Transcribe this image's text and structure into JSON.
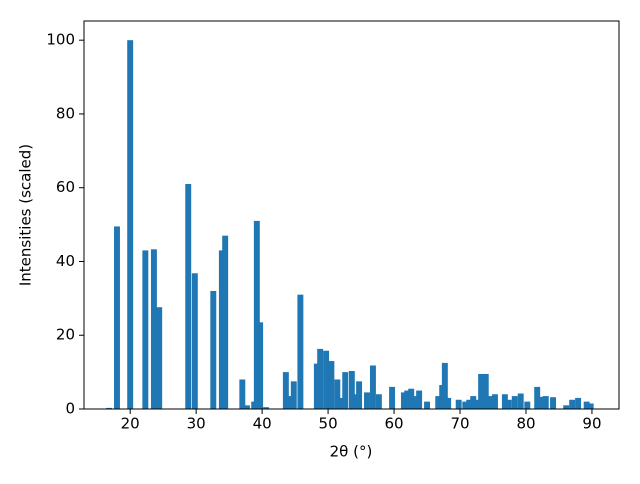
{
  "chart_data": {
    "type": "bar",
    "xlabel": "2θ (°)",
    "ylabel": "Intensities (scaled)",
    "color": "#1f77b4",
    "x": [
      16.8,
      18.0,
      20.0,
      22.3,
      23.6,
      24.4,
      28.8,
      29.8,
      32.6,
      33.9,
      34.4,
      37.0,
      37.7,
      38.8,
      39.2,
      39.7,
      40.6,
      43.6,
      44.2,
      44.8,
      45.8,
      48.3,
      48.8,
      49.7,
      50.5,
      51.4,
      52.0,
      52.6,
      53.6,
      54.2,
      54.7,
      55.9,
      56.8,
      57.7,
      59.7,
      61.5,
      62.0,
      62.6,
      63.2,
      63.8,
      65.0,
      66.7,
      67.3,
      67.7,
      68.2,
      69.8,
      70.8,
      71.4,
      72.0,
      72.6,
      73.2,
      73.9,
      74.5,
      75.3,
      76.8,
      77.4,
      78.3,
      79.2,
      80.2,
      81.7,
      82.3,
      83.0,
      84.1,
      86.1,
      87.0,
      87.9,
      89.2,
      89.8
    ],
    "values": [
      0.3,
      49.5,
      100,
      43,
      43.3,
      27.6,
      61,
      36.8,
      32,
      43,
      47,
      8,
      1,
      2,
      51,
      23.5,
      0.5,
      10,
      3.5,
      7.5,
      31,
      12.3,
      16.3,
      15.8,
      13,
      8,
      3,
      10,
      10.3,
      4,
      7.5,
      4.5,
      11.8,
      4,
      6,
      4.5,
      5,
      5.5,
      3.5,
      5,
      2,
      3.5,
      6.5,
      12.5,
      3,
      2.5,
      2,
      2.5,
      3.5,
      2.5,
      9.5,
      9.5,
      3.5,
      4,
      4,
      2.5,
      3.5,
      4.2,
      2,
      6,
      3.3,
      3.5,
      3.2,
      1,
      2.5,
      3,
      2,
      1.5
    ],
    "xlim": [
      13.0,
      94.1
    ],
    "ylim": [
      0,
      105.2
    ],
    "xticks": [
      20,
      30,
      40,
      50,
      60,
      70,
      80,
      90
    ],
    "yticks": [
      0,
      20,
      40,
      60,
      80,
      100
    ]
  }
}
